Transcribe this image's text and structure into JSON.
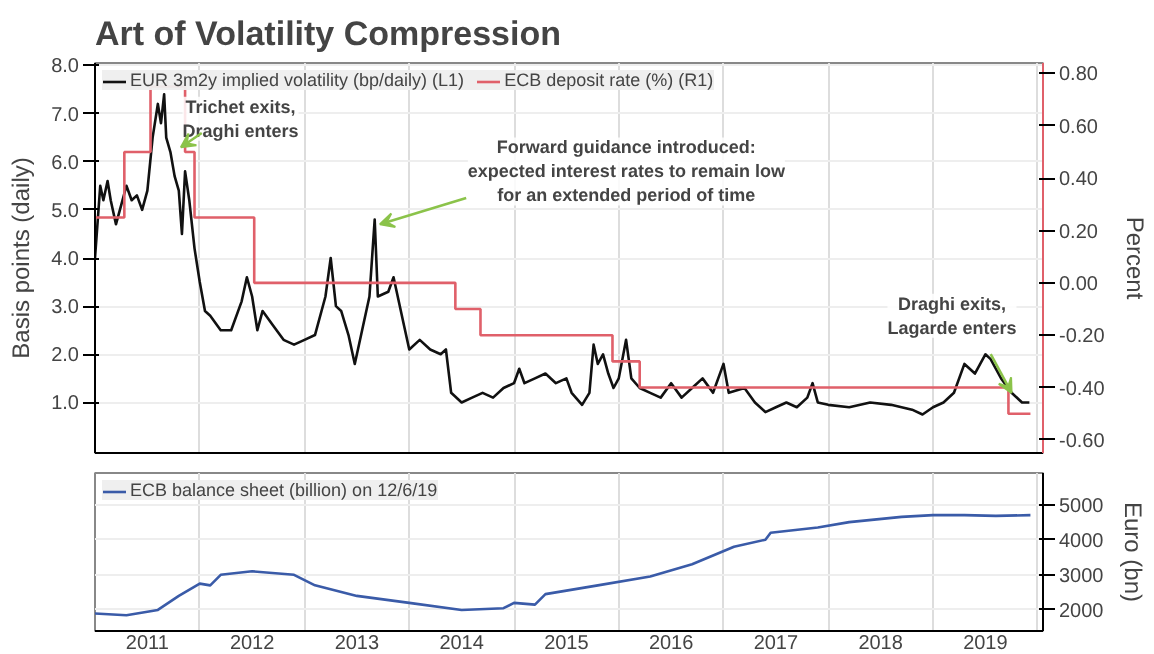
{
  "chart_data": [
    {
      "type": "line",
      "title": "Art of Volatility Compression",
      "ylabel": "Basis points (daily)",
      "y2label": "Percent",
      "xlim": [
        2011,
        2020.05
      ],
      "xticks": [
        {
          "value": 2011,
          "label": null
        },
        {
          "value": 2012,
          "label": null
        },
        {
          "value": 2013,
          "label": null
        },
        {
          "value": 2014,
          "label": null
        },
        {
          "value": 2015,
          "label": null
        },
        {
          "value": 2016,
          "label": null
        },
        {
          "value": 2017,
          "label": null
        },
        {
          "value": 2018,
          "label": null
        },
        {
          "value": 2019,
          "label": null
        },
        {
          "value": 2020,
          "label": null
        }
      ],
      "ylim": [
        -0.05,
        8.05
      ],
      "yticks": [
        {
          "value": 1,
          "label": "1.0"
        },
        {
          "value": 2,
          "label": "2.0"
        },
        {
          "value": 3,
          "label": "3.0"
        },
        {
          "value": 4,
          "label": "4.0"
        },
        {
          "value": 5,
          "label": "5.0"
        },
        {
          "value": 6,
          "label": "6.0"
        },
        {
          "value": 7,
          "label": "7.0"
        },
        {
          "value": 8,
          "label": "8.0"
        }
      ],
      "y2lim": [
        -0.65,
        0.84
      ],
      "y2ticks": [
        {
          "value": 0.8,
          "label": "0.80"
        },
        {
          "value": 0.6,
          "label": "0.60"
        },
        {
          "value": 0.4,
          "label": "0.40"
        },
        {
          "value": 0.2,
          "label": "0.20"
        },
        {
          "value": 0,
          "label": "0.00"
        },
        {
          "value": -0.2,
          "label": "-0.20"
        },
        {
          "value": -0.4,
          "label": "-0.40"
        },
        {
          "value": -0.6,
          "label": "-0.60"
        }
      ],
      "tick_labels": "y",
      "grid": true,
      "legend": "top left",
      "series": [
        {
          "name": "EUR 3m2y implied volatility (bp/daily) (L1)",
          "color": "#111111",
          "type": "line",
          "x": [
            2011.0,
            2011.02,
            2011.05,
            2011.08,
            2011.12,
            2011.15,
            2011.2,
            2011.25,
            2011.3,
            2011.35,
            2011.4,
            2011.45,
            2011.5,
            2011.55,
            2011.6,
            2011.63,
            2011.66,
            2011.68,
            2011.72,
            2011.76,
            2011.8,
            2011.83,
            2011.86,
            2011.9,
            2011.95,
            2012.0,
            2012.05,
            2012.1,
            2012.2,
            2012.3,
            2012.4,
            2012.45,
            2012.5,
            2012.55,
            2012.6,
            2012.7,
            2012.8,
            2012.9,
            2013.0,
            2013.1,
            2013.2,
            2013.25,
            2013.3,
            2013.35,
            2013.42,
            2013.48,
            2013.55,
            2013.62,
            2013.67,
            2013.7,
            2013.8,
            2013.85,
            2013.95,
            2014.0,
            2014.1,
            2014.2,
            2014.3,
            2014.35,
            2014.4,
            2014.5,
            2014.6,
            2014.7,
            2014.8,
            2014.9,
            2015.0,
            2015.05,
            2015.1,
            2015.2,
            2015.3,
            2015.4,
            2015.5,
            2015.55,
            2015.65,
            2015.72,
            2015.76,
            2015.8,
            2015.85,
            2015.9,
            2015.95,
            2016.0,
            2016.07,
            2016.12,
            2016.2,
            2016.3,
            2016.4,
            2016.5,
            2016.6,
            2016.7,
            2016.8,
            2016.9,
            2017.0,
            2017.05,
            2017.2,
            2017.3,
            2017.4,
            2017.5,
            2017.6,
            2017.7,
            2017.8,
            2017.85,
            2017.9,
            2018.0,
            2018.2,
            2018.4,
            2018.6,
            2018.8,
            2018.9,
            2019.0,
            2019.1,
            2019.2,
            2019.3,
            2019.4,
            2019.5,
            2019.55,
            2019.65,
            2019.75,
            2019.85,
            2019.92
          ],
          "values": [
            4.0,
            4.6,
            5.5,
            5.2,
            5.6,
            5.2,
            4.7,
            5.1,
            5.5,
            5.2,
            5.3,
            5.0,
            5.4,
            6.5,
            7.2,
            6.8,
            7.4,
            6.5,
            6.2,
            5.7,
            5.4,
            4.5,
            5.8,
            5.2,
            4.2,
            3.5,
            2.9,
            2.8,
            2.5,
            2.5,
            3.1,
            3.6,
            3.2,
            2.5,
            2.9,
            2.6,
            2.3,
            2.2,
            2.3,
            2.4,
            3.2,
            4.0,
            3.0,
            2.9,
            2.4,
            1.8,
            2.5,
            3.2,
            4.8,
            3.2,
            3.3,
            3.6,
            2.6,
            2.1,
            2.3,
            2.1,
            2.0,
            2.1,
            1.2,
            1.0,
            1.1,
            1.2,
            1.1,
            1.3,
            1.4,
            1.7,
            1.4,
            1.5,
            1.6,
            1.4,
            1.5,
            1.2,
            0.95,
            1.2,
            2.2,
            1.8,
            2.0,
            1.6,
            1.3,
            1.5,
            2.3,
            1.5,
            1.3,
            1.2,
            1.1,
            1.4,
            1.1,
            1.3,
            1.5,
            1.2,
            1.8,
            1.2,
            1.3,
            1.0,
            0.8,
            0.9,
            1.0,
            0.9,
            1.1,
            1.4,
            1.0,
            0.95,
            0.9,
            1.0,
            0.95,
            0.85,
            0.75,
            0.9,
            1.0,
            1.2,
            1.8,
            1.6,
            2.0,
            1.9,
            1.5,
            1.2,
            1.0,
            1.0
          ]
        },
        {
          "name": "ECB deposit rate (%) (R1)",
          "color": "#e0606a",
          "type": "step",
          "axis": "y2",
          "x": [
            2011.0,
            2011.28,
            2011.53,
            2011.86,
            2011.95,
            2012.52,
            2014.44,
            2014.68,
            2015.94,
            2016.2,
            2019.72,
            2019.93
          ],
          "values": [
            0.25,
            0.5,
            0.75,
            0.5,
            0.25,
            0.0,
            -0.1,
            -0.2,
            -0.3,
            -0.4,
            -0.5,
            -0.5
          ]
        }
      ],
      "annotations": [
        {
          "text": "Trichet exits,\nDraghi enters",
          "x": 2011.82,
          "y": 6.3
        },
        {
          "text": "Forward guidance introduced:\nexpected interest rates to remain low\nfor an extended period of time",
          "x": 2013.72,
          "y": 4.7
        },
        {
          "text": "Draghi exits,\nLagarde enters",
          "x": 2019.75,
          "y": 1.2
        }
      ]
    },
    {
      "type": "line",
      "ylabel": "Euro (bn)",
      "xlim": [
        2011,
        2020.05
      ],
      "xticks": [
        {
          "value": 2011,
          "label": null
        },
        {
          "value": 2012,
          "label": null
        },
        {
          "value": 2013,
          "label": null
        },
        {
          "value": 2014,
          "label": null
        },
        {
          "value": 2015,
          "label": null
        },
        {
          "value": 2016,
          "label": null
        },
        {
          "value": 2017,
          "label": null
        },
        {
          "value": 2018,
          "label": null
        },
        {
          "value": 2019,
          "label": null
        },
        {
          "value": 2020,
          "label": null
        },
        {
          "value": 2011.5,
          "label": "2011"
        },
        {
          "value": 2012.5,
          "label": "2012"
        },
        {
          "value": 2013.5,
          "label": "2013"
        },
        {
          "value": 2014.5,
          "label": "2014"
        },
        {
          "value": 2015.5,
          "label": "2015"
        },
        {
          "value": 2016.5,
          "label": "2016"
        },
        {
          "value": 2017.5,
          "label": "2017"
        },
        {
          "value": 2018.5,
          "label": "2018"
        },
        {
          "value": 2019.5,
          "label": "2019"
        }
      ],
      "ylim": [
        1400,
        5900
      ],
      "yticks": [
        2000,
        3000,
        4000,
        5000
      ],
      "grid": true,
      "legend": "top left",
      "series": [
        {
          "name": "ECB balance sheet (billion) on 12/6/19",
          "color": "#3a5ba8",
          "x": [
            2011.0,
            2011.3,
            2011.6,
            2011.8,
            2012.0,
            2012.1,
            2012.2,
            2012.5,
            2012.9,
            2013.1,
            2013.5,
            2014.0,
            2014.5,
            2014.9,
            2015.0,
            2015.2,
            2015.3,
            2015.8,
            2016.3,
            2016.7,
            2017.1,
            2017.4,
            2017.45,
            2017.9,
            2018.2,
            2018.7,
            2019.0,
            2019.3,
            2019.6,
            2019.93
          ],
          "values": [
            1900,
            1850,
            2000,
            2400,
            2750,
            2700,
            3000,
            3100,
            3000,
            2700,
            2400,
            2200,
            2000,
            2050,
            2200,
            2150,
            2450,
            2700,
            2950,
            3300,
            3800,
            4000,
            4200,
            4350,
            4500,
            4650,
            4700,
            4700,
            4680,
            4700
          ]
        }
      ]
    }
  ]
}
